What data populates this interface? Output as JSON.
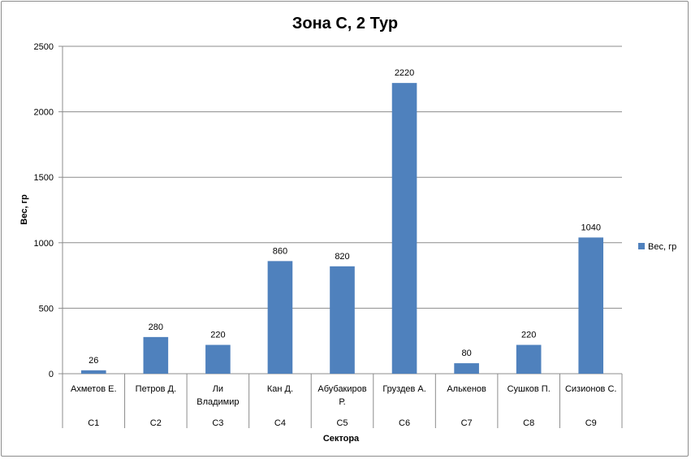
{
  "chart_data": {
    "type": "bar",
    "title": "Зона С, 2 Тур",
    "ylabel": "Вес, гр",
    "xlabel": "Сектора",
    "ylim": [
      0,
      2500
    ],
    "yticks": [
      0,
      500,
      1000,
      1500,
      2000,
      2500
    ],
    "grid": true,
    "legend_position": "right",
    "categories": [
      {
        "name": [
          "Ахметов Е."
        ],
        "group": "С1"
      },
      {
        "name": [
          "Петров Д."
        ],
        "group": "С2"
      },
      {
        "name": [
          "Ли",
          "Владимир"
        ],
        "group": "С3"
      },
      {
        "name": [
          "Кан Д."
        ],
        "group": "С4"
      },
      {
        "name": [
          "Абубакиров",
          "Р."
        ],
        "group": "С5"
      },
      {
        "name": [
          "Груздев А."
        ],
        "group": "С6"
      },
      {
        "name": [
          "Алькенов"
        ],
        "group": "С7"
      },
      {
        "name": [
          "Сушков П."
        ],
        "group": "С8"
      },
      {
        "name": [
          "Сизионов С."
        ],
        "group": "С9"
      }
    ],
    "series": [
      {
        "name": "Вес, гр",
        "color": "#4f81bd",
        "values": [
          26,
          280,
          220,
          860,
          820,
          2220,
          80,
          220,
          1040
        ]
      }
    ]
  }
}
